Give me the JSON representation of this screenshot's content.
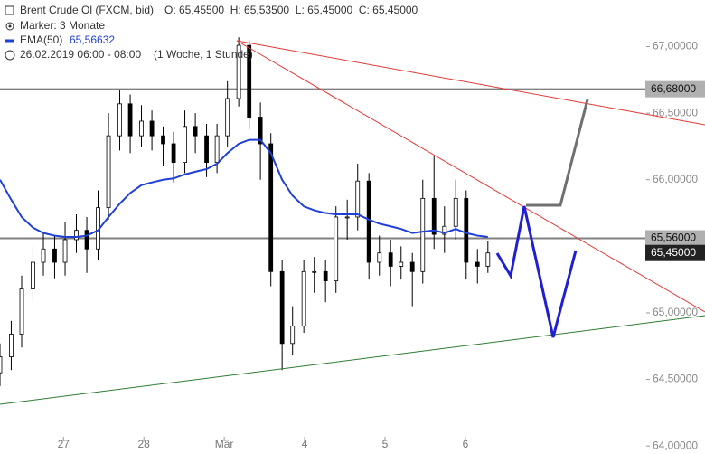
{
  "chart_data": {
    "type": "candlestick",
    "title": "Brent Crude Öl (FXCM, bid)",
    "quote": "O: 65,45500  H: 65,53500  L: 65,45000  C: 65,45000",
    "marker": "Marker: 3 Monate",
    "period": "26.02.2019 06:00 - 08:00",
    "period_note": "(1 Woche, 1 Stunde)",
    "up_color": "#ffffff",
    "down_color": "#000000",
    "xlim": [
      -0.79,
      7.25
    ],
    "ylim": [
      63.94,
      67.35
    ],
    "xticks": [
      {
        "value": 0,
        "label": "27"
      },
      {
        "value": 1,
        "label": "28"
      },
      {
        "value": 2,
        "label": "Mär"
      },
      {
        "value": 3,
        "label": "4"
      },
      {
        "value": 4,
        "label": "5"
      },
      {
        "value": 5,
        "label": "6"
      }
    ],
    "yticks": [
      {
        "value": 67,
        "label": "67,00000"
      },
      {
        "value": 66.5,
        "label": "66,50000"
      },
      {
        "value": 66,
        "label": "66,00000"
      },
      {
        "value": 65,
        "label": "65,00000"
      },
      {
        "value": 64.5,
        "label": "64,50000"
      },
      {
        "value": 64,
        "label": "64,00000"
      }
    ],
    "levels": [
      {
        "value": 66.68,
        "label": "66,68000",
        "color": "#808080"
      },
      {
        "value": 65.56,
        "label": "65,56000",
        "color": "#808080"
      }
    ],
    "last_price": {
      "value": 65.45,
      "label": "65,45000"
    },
    "x": [
      -0.79,
      -0.65,
      -0.52,
      -0.38,
      -0.25,
      -0.11,
      0.02,
      0.16,
      0.29,
      0.43,
      0.56,
      0.7,
      0.83,
      0.97,
      1.1,
      1.24,
      1.37,
      1.51,
      1.64,
      1.78,
      1.91,
      2.04,
      2.18,
      2.31,
      2.45,
      2.58,
      2.72,
      2.85,
      2.99,
      3.12,
      3.26,
      3.39,
      3.53,
      3.66,
      3.8,
      3.93,
      4.07,
      4.2,
      4.34,
      4.47,
      4.61,
      4.74,
      4.88,
      5.01,
      5.15,
      5.28
    ],
    "open": [
      64.55,
      64.67,
      64.84,
      65.18,
      65.38,
      65.48,
      65.38,
      65.55,
      65.62,
      65.48,
      65.79,
      66.33,
      66.57,
      66.33,
      66.44,
      66.33,
      66.27,
      66.13,
      66.4,
      66.33,
      66.13,
      66.33,
      66.61,
      67.01,
      66.47,
      66.27,
      65.31,
      64.77,
      64.9,
      65.31,
      65.31,
      65.24,
      65.72,
      65.72,
      65.99,
      65.38,
      65.45,
      65.35,
      65.38,
      65.31,
      65.86,
      65.59,
      65.65,
      65.86,
      65.38,
      65.35
    ],
    "high": [
      64.77,
      64.94,
      65.28,
      65.5,
      65.6,
      65.58,
      65.68,
      65.74,
      65.72,
      65.92,
      66.5,
      66.67,
      66.64,
      66.56,
      66.52,
      66.4,
      66.36,
      66.52,
      66.5,
      66.42,
      66.42,
      66.74,
      67.07,
      67.05,
      66.58,
      66.35,
      65.4,
      65.05,
      65.4,
      65.42,
      65.4,
      65.8,
      65.85,
      66.12,
      66.05,
      65.58,
      65.55,
      65.5,
      65.45,
      66.0,
      66.18,
      65.8,
      66.0,
      65.92,
      65.48,
      65.54
    ],
    "low": [
      64.45,
      64.57,
      64.74,
      65.08,
      65.28,
      65.26,
      65.28,
      65.45,
      65.3,
      65.4,
      65.7,
      66.22,
      66.2,
      66.25,
      66.22,
      66.1,
      65.98,
      66.05,
      66.2,
      66.02,
      66.05,
      66.25,
      66.55,
      66.38,
      66.0,
      65.2,
      64.57,
      64.68,
      64.85,
      65.15,
      65.08,
      65.15,
      65.55,
      65.62,
      65.25,
      65.28,
      65.2,
      65.25,
      65.05,
      65.22,
      65.48,
      65.45,
      65.55,
      65.25,
      65.22,
      65.3
    ],
    "close": [
      64.67,
      64.84,
      65.18,
      65.38,
      65.48,
      65.38,
      65.55,
      65.62,
      65.48,
      65.79,
      66.33,
      66.57,
      66.33,
      66.44,
      66.33,
      66.27,
      66.13,
      66.4,
      66.33,
      66.13,
      66.33,
      66.61,
      67.01,
      66.47,
      66.27,
      65.31,
      64.77,
      64.9,
      65.31,
      65.31,
      65.24,
      65.72,
      65.72,
      65.99,
      65.38,
      65.45,
      65.35,
      65.38,
      65.31,
      65.86,
      65.59,
      65.65,
      65.86,
      65.38,
      65.35,
      65.45
    ],
    "series": [
      {
        "name": "EMA(50)",
        "value_label": "65,56632",
        "color": "#1f3fd6",
        "values": [
          66.0,
          65.85,
          65.72,
          65.64,
          65.6,
          65.58,
          65.57,
          65.57,
          65.58,
          65.62,
          65.72,
          65.82,
          65.9,
          65.96,
          65.98,
          66.0,
          66.01,
          66.04,
          66.06,
          66.08,
          66.12,
          66.2,
          66.27,
          66.3,
          66.3,
          66.2,
          66.0,
          65.88,
          65.8,
          65.77,
          65.75,
          65.74,
          65.74,
          65.74,
          65.7,
          65.67,
          65.65,
          65.63,
          65.6,
          65.61,
          65.62,
          65.6,
          65.63,
          65.6,
          65.58,
          65.57
        ]
      }
    ]
  }
}
